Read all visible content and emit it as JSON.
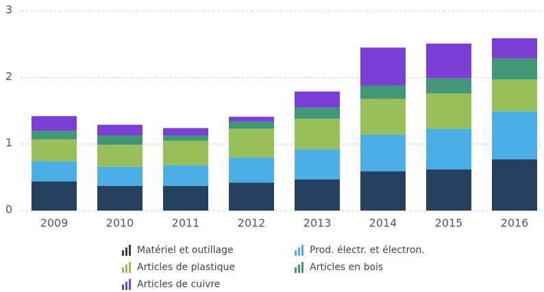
{
  "chart_data": {
    "type": "stacked-bar",
    "categories": [
      "2009",
      "2010",
      "2011",
      "2012",
      "2013",
      "2014",
      "2015",
      "2016"
    ],
    "series": [
      {
        "name": "Matériel et outillage",
        "color": "#253f5e",
        "values": [
          0.44,
          0.37,
          0.37,
          0.42,
          0.47,
          0.59,
          0.62,
          0.77
        ]
      },
      {
        "name": "Prod. électr. et électron.",
        "color": "#4aaee8",
        "values": [
          0.3,
          0.29,
          0.31,
          0.38,
          0.45,
          0.55,
          0.61,
          0.72
        ]
      },
      {
        "name": "Articles de plastique",
        "color": "#98bf58",
        "values": [
          0.33,
          0.33,
          0.37,
          0.43,
          0.46,
          0.54,
          0.53,
          0.48
        ]
      },
      {
        "name": "Articles en bois",
        "color": "#3f9775",
        "values": [
          0.13,
          0.14,
          0.08,
          0.11,
          0.17,
          0.2,
          0.23,
          0.32
        ]
      },
      {
        "name": "Articles de cuivre",
        "color": "#7b3fd8",
        "values": [
          0.22,
          0.16,
          0.11,
          0.07,
          0.24,
          0.57,
          0.52,
          0.3
        ]
      }
    ],
    "ylim": [
      0,
      3
    ],
    "yticks": [
      0,
      1,
      2,
      3
    ],
    "grid": true,
    "legend": "bottom"
  }
}
